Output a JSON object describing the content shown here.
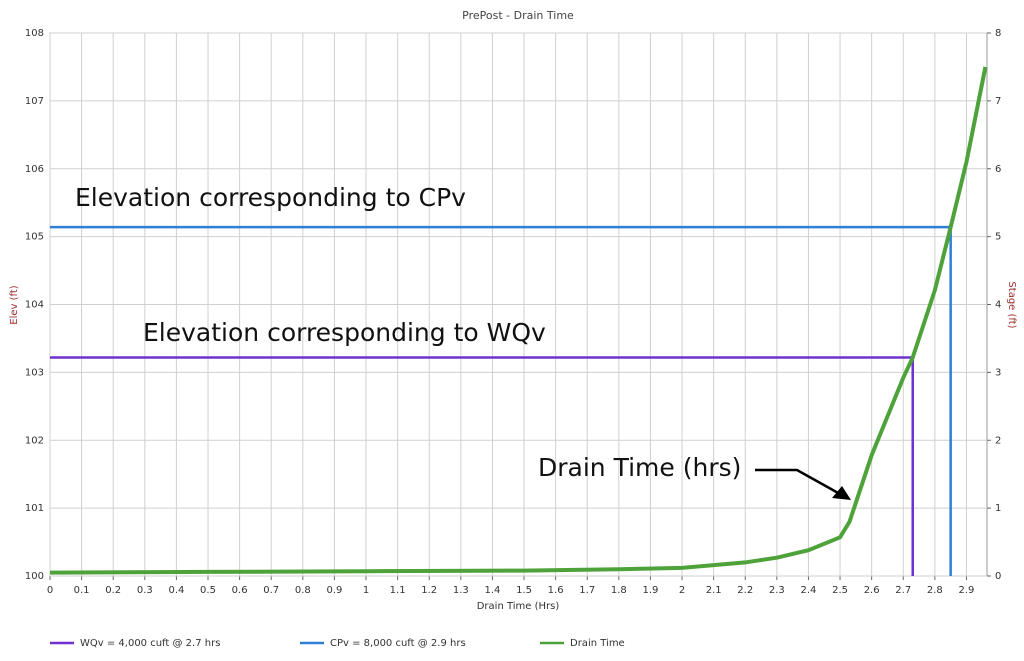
{
  "chart_data": {
    "type": "line",
    "title": "PrePost - Drain Time",
    "x_label": "Drain Time (Hrs)",
    "y_label": "Elev (ft)",
    "y2_label": "Stage (ft)",
    "xlim": [
      0,
      2.965
    ],
    "xticks": [
      0,
      0.1,
      0.2,
      0.3,
      0.4,
      0.5,
      0.6,
      0.7,
      0.8,
      0.9,
      1,
      1.1,
      1.2,
      1.3,
      1.4,
      1.5,
      1.6,
      1.7,
      1.8,
      1.9,
      2,
      2.1,
      2.2,
      2.3,
      2.4,
      2.5,
      2.6,
      2.7,
      2.8,
      2.9
    ],
    "ylim": [
      100,
      108
    ],
    "yticks": [
      100,
      101,
      102,
      103,
      104,
      105,
      106,
      107,
      108
    ],
    "y2lim": [
      0,
      8
    ],
    "y2ticks": [
      0,
      1,
      2,
      3,
      4,
      5,
      6,
      7,
      8
    ],
    "grid": true,
    "series": [
      {
        "name": "WQv = 4,000 cuft @ 2.7 hrs",
        "color": "#7030d0",
        "x": [
          0,
          2.73,
          2.73
        ],
        "values": [
          103.22,
          103.22,
          100
        ]
      },
      {
        "name": "CPv = 8,000 cuft @ 2.9 hrs",
        "color": "#2f7ed8",
        "x": [
          0,
          2.85,
          2.85
        ],
        "values": [
          105.14,
          105.14,
          100
        ]
      },
      {
        "name": "Drain Time",
        "color": "#4ea23a",
        "x": [
          0,
          0.5,
          1,
          1.5,
          1.8,
          2,
          2.2,
          2.3,
          2.4,
          2.5,
          2.53,
          2.6,
          2.7,
          2.73,
          2.8,
          2.85,
          2.9,
          2.96
        ],
        "values": [
          100.05,
          100.06,
          100.07,
          100.08,
          100.1,
          100.12,
          100.2,
          100.27,
          100.38,
          100.57,
          100.8,
          101.78,
          102.92,
          103.22,
          104.21,
          105.14,
          106.1,
          107.5
        ]
      }
    ],
    "annotations": [
      "Elevation corresponding to CPv",
      "Elevation corresponding to WQv",
      "Drain Time (hrs)"
    ]
  }
}
